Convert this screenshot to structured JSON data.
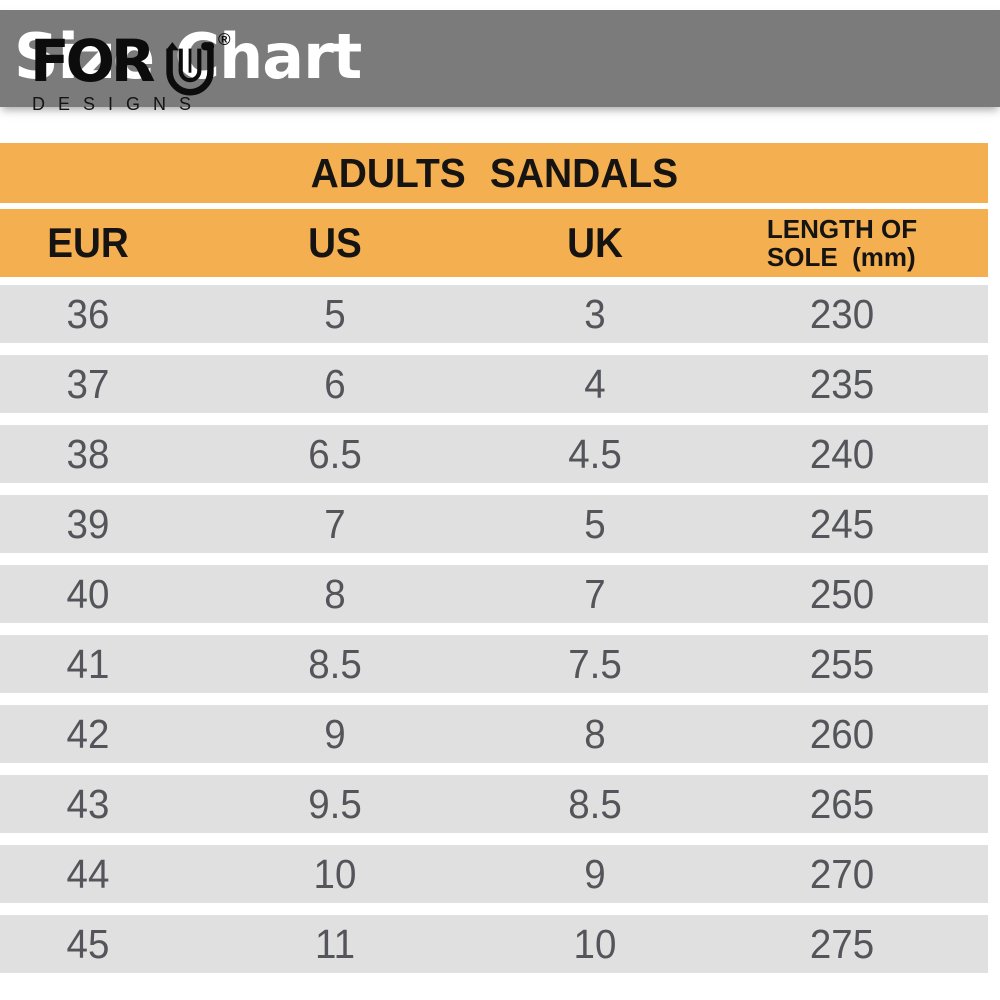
{
  "header": {
    "title": "Size Chart",
    "logo": {
      "text": "FOR",
      "u_icon": "stylized-striped-u",
      "registered": "®",
      "subtext": "DESIGNS"
    }
  },
  "banner": {
    "title": "ADULTS SANDALS"
  },
  "table_header": {
    "eur": "EUR",
    "us": "US",
    "uk": "UK",
    "length_line1": "LENGTH OF",
    "length_line2": "SOLE  (mm)"
  },
  "chart_data": {
    "type": "table",
    "title": "ADULTS SANDALS",
    "columns": [
      "EUR",
      "US",
      "UK",
      "LENGTH OF SOLE (mm)"
    ],
    "rows": [
      [
        "36",
        "5",
        "3",
        "230"
      ],
      [
        "37",
        "6",
        "4",
        "235"
      ],
      [
        "38",
        "6.5",
        "4.5",
        "240"
      ],
      [
        "39",
        "7",
        "5",
        "245"
      ],
      [
        "40",
        "8",
        "7",
        "250"
      ],
      [
        "41",
        "8.5",
        "7.5",
        "255"
      ],
      [
        "42",
        "9",
        "8",
        "260"
      ],
      [
        "43",
        "9.5",
        "8.5",
        "265"
      ],
      [
        "44",
        "10",
        "9",
        "270"
      ],
      [
        "45",
        "11",
        "10",
        "275"
      ]
    ]
  },
  "colors": {
    "accent_orange": "#F4AF50",
    "banner_gray": "#7B7B7B",
    "row_gray": "#E1E0E0",
    "row_text": "#54555A",
    "header_text": "#161412",
    "title_text_white": "#FFFFFF"
  }
}
